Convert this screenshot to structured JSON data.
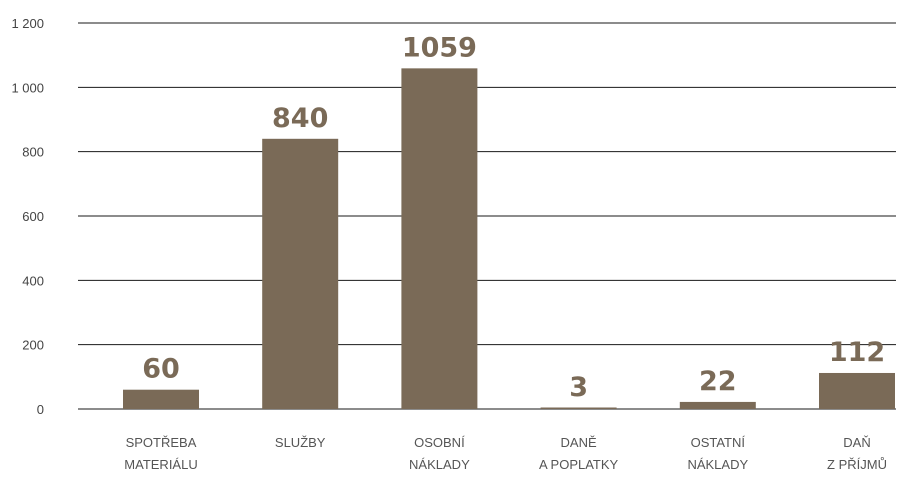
{
  "chart_data": {
    "type": "bar",
    "title": "",
    "xlabel": "",
    "ylabel": "",
    "categories": [
      [
        "SPOTŘEBA",
        "MATERIÁLU"
      ],
      [
        "SLUŽBY"
      ],
      [
        "OSOBNÍ",
        "NÁKLADY"
      ],
      [
        "DANĚ",
        "A POPLATKY"
      ],
      [
        "OSTATNÍ",
        "NÁKLADY"
      ],
      [
        "DAŇ",
        "Z PŘÍJMŮ"
      ]
    ],
    "values": [
      60,
      840,
      1059,
      3,
      22,
      112
    ],
    "data_labels": [
      "60",
      "840",
      "1059",
      "3",
      "22",
      "112"
    ],
    "ylim": [
      0,
      1200
    ],
    "yticks": [
      0,
      200,
      400,
      600,
      800,
      1000,
      1200
    ],
    "ytick_labels": [
      "0",
      "200",
      "400",
      "600",
      "800",
      "1 000",
      "1 200"
    ],
    "grid": true,
    "bar_color": "#7a6a57",
    "label_color": "#7a6a57"
  }
}
